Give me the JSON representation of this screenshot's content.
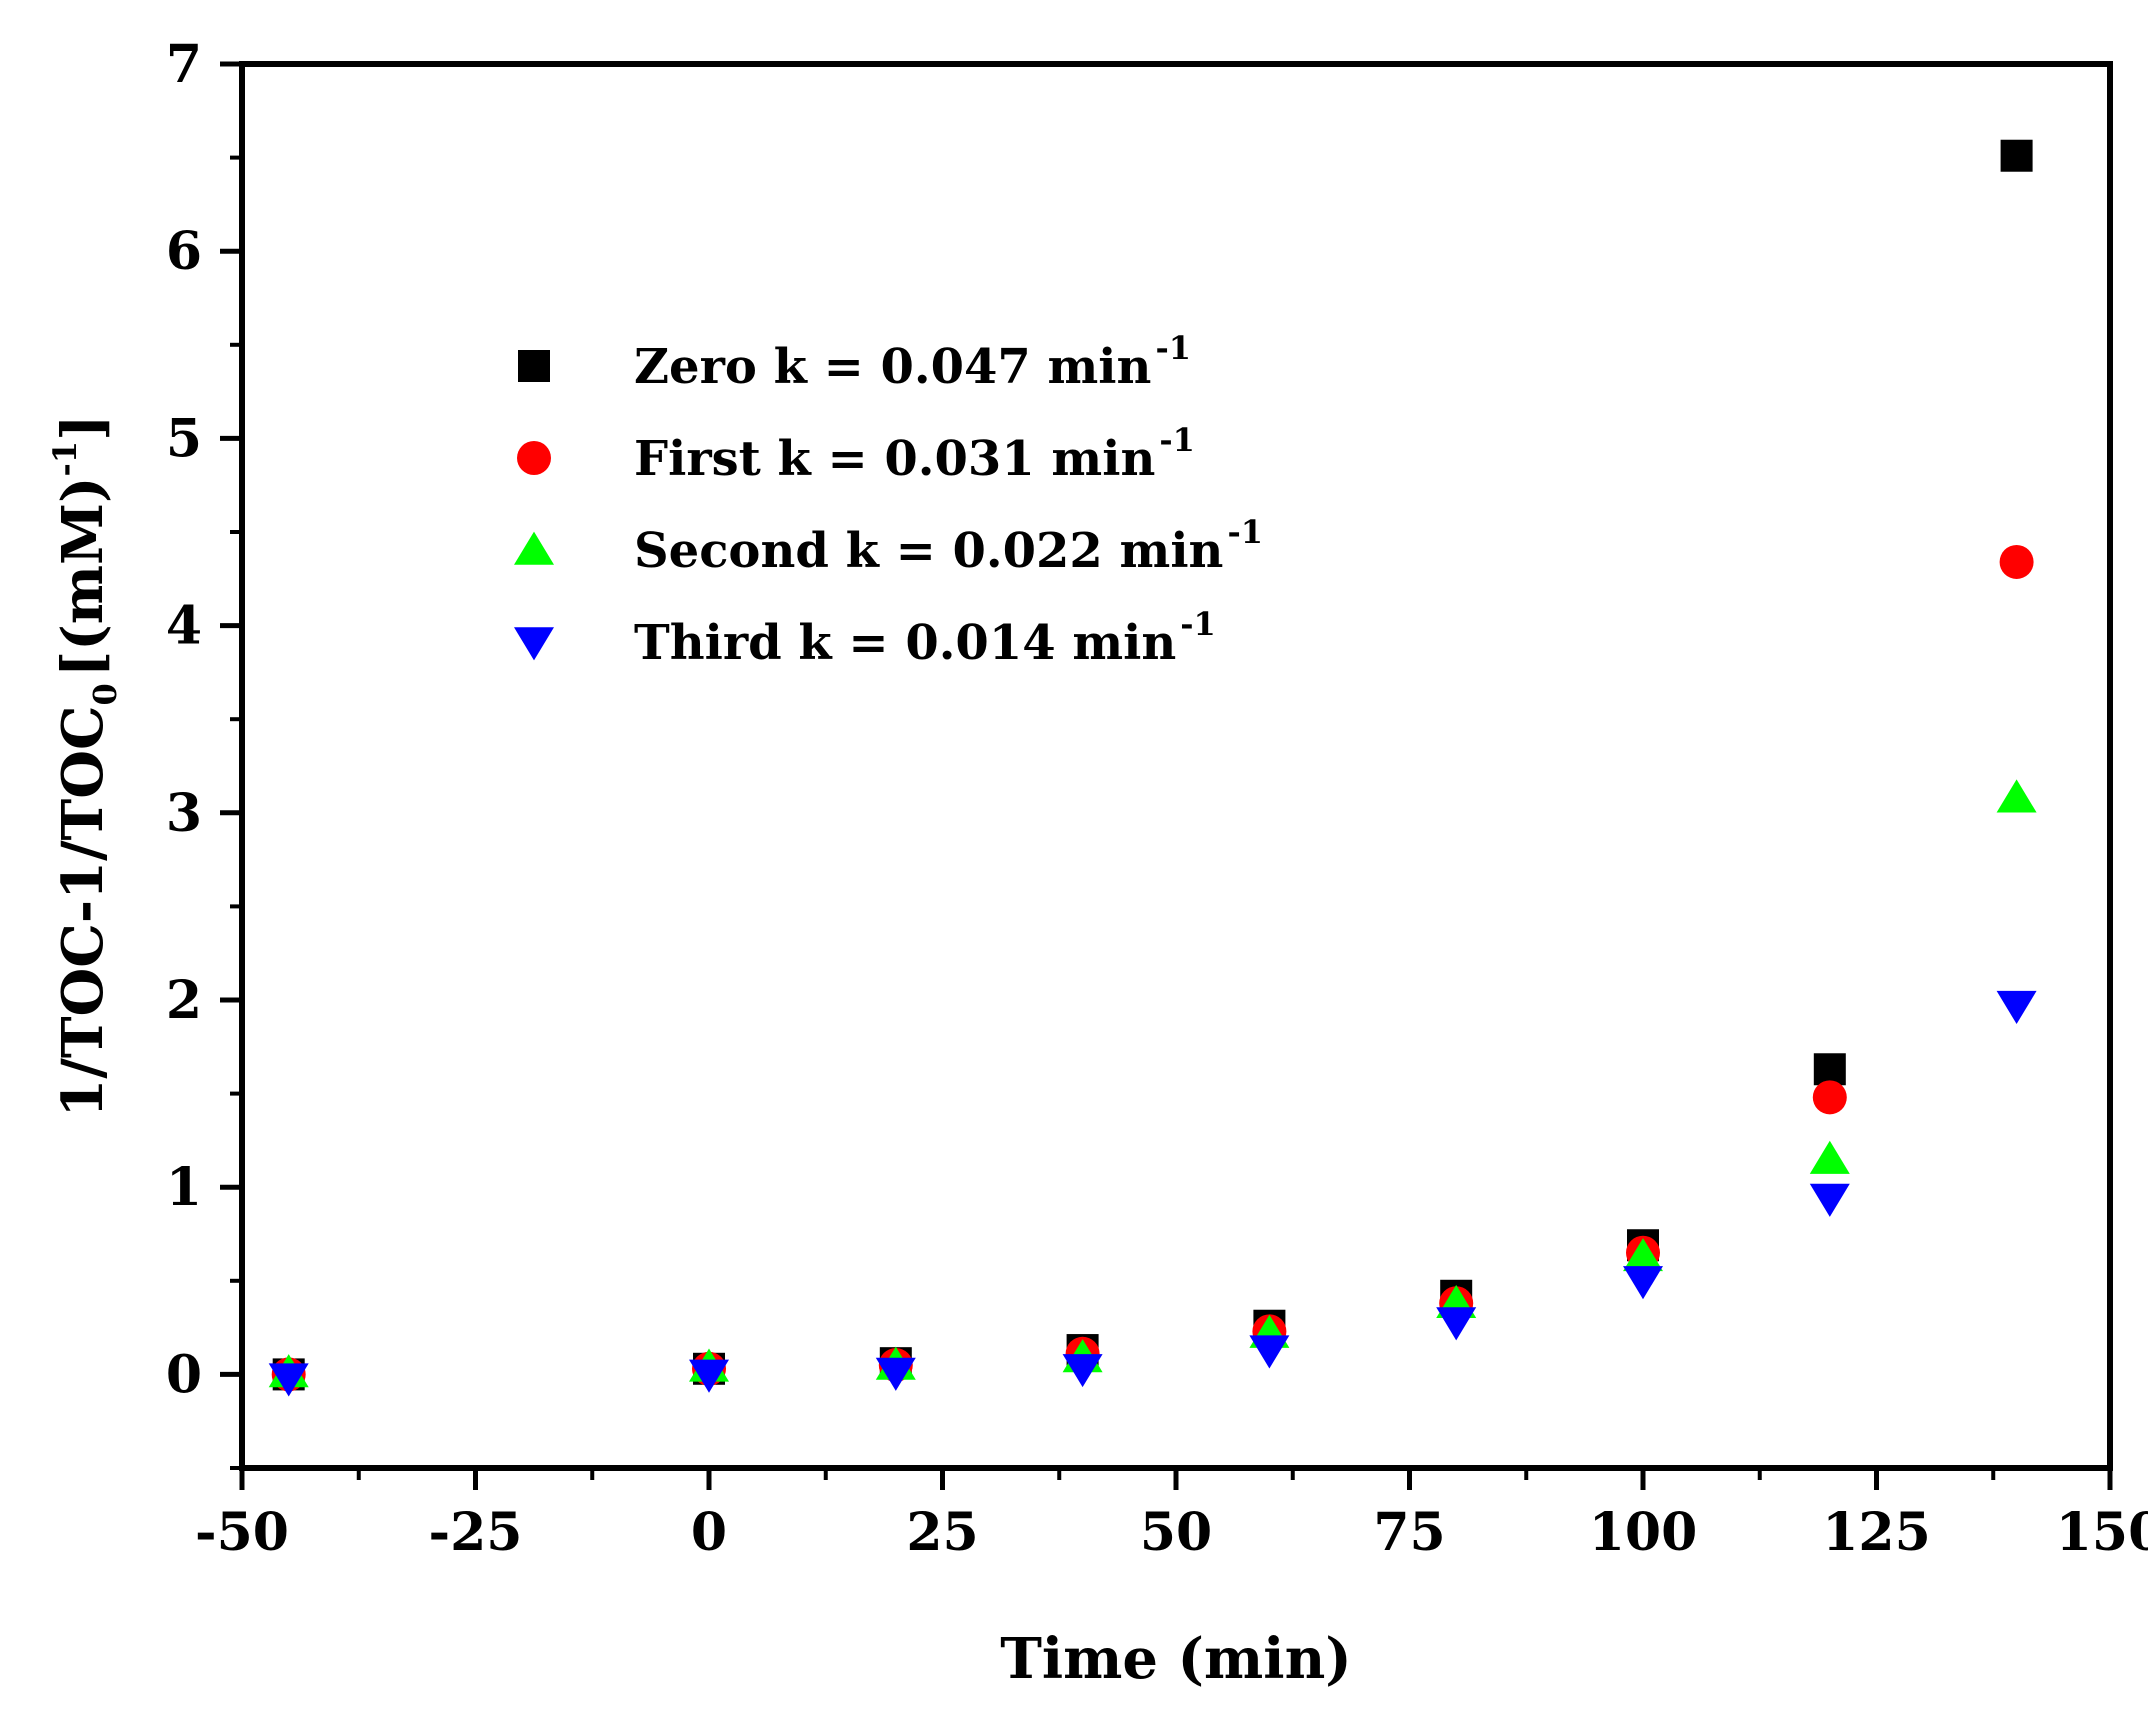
{
  "chart_data": {
    "type": "scatter",
    "title": "",
    "xlabel": "Time (min)",
    "ylabel_parts": {
      "main": "1/TOC-1/TOC",
      "sub": "0",
      "rest": "[(mM)",
      "sup": "-1",
      "close": "]"
    },
    "xlim": [
      -50,
      150
    ],
    "ylim": [
      -0.5,
      7
    ],
    "xticks": [
      -50,
      -25,
      0,
      25,
      50,
      75,
      100,
      125,
      150
    ],
    "xtick_labels": [
      "-50",
      "-25",
      "0",
      "25",
      "50",
      "75",
      "100",
      "125",
      "150"
    ],
    "yticks": [
      0,
      1,
      2,
      3,
      4,
      5,
      6,
      7
    ],
    "ytick_labels": [
      "0",
      "1",
      "2",
      "3",
      "4",
      "5",
      "6",
      "7"
    ],
    "x": [
      -45,
      0,
      20,
      40,
      60,
      80,
      100,
      120,
      140
    ],
    "series": [
      {
        "name": "Zero",
        "label": "Zero k = 0.047 min",
        "sup": "-1",
        "marker": "square",
        "color": "#000000",
        "values": [
          0.0,
          0.03,
          0.06,
          0.13,
          0.26,
          0.42,
          0.69,
          1.63,
          6.51
        ]
      },
      {
        "name": "First",
        "label": "First k = 0.031 min",
        "sup": "-1",
        "marker": "circle",
        "color": "#ff0000",
        "values": [
          0.0,
          0.03,
          0.05,
          0.11,
          0.23,
          0.38,
          0.65,
          1.48,
          4.34
        ]
      },
      {
        "name": "Second",
        "label": "Second k = 0.022 min",
        "sup": "-1",
        "marker": "triangle-up",
        "color": "#00ff00",
        "values": [
          0.01,
          0.04,
          0.05,
          0.09,
          0.22,
          0.38,
          0.63,
          1.15,
          3.08
        ]
      },
      {
        "name": "Third",
        "label": "Third k = 0.014 min",
        "sup": "-1",
        "marker": "triangle-down",
        "color": "#0000ff",
        "values": [
          -0.02,
          0.0,
          0.01,
          0.03,
          0.13,
          0.28,
          0.5,
          0.94,
          1.97
        ]
      }
    ],
    "legend_position": "upper-left"
  }
}
